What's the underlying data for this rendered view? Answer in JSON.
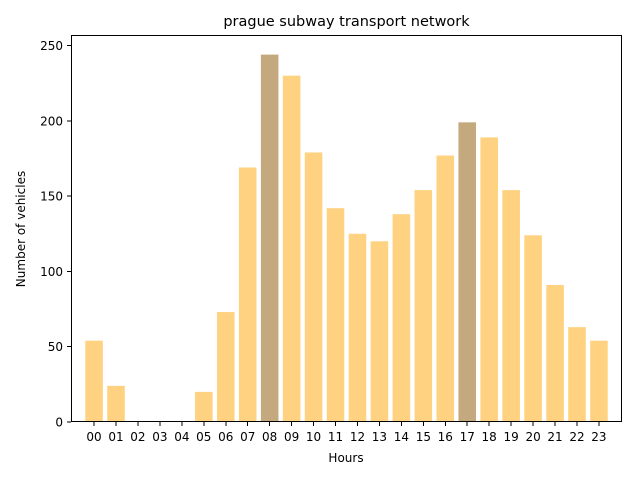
{
  "chart_data": {
    "type": "bar",
    "title": "prague subway transport network",
    "xlabel": "Hours",
    "ylabel": "Number of vehicles",
    "ylim": [
      0,
      257
    ],
    "yticks": [
      0,
      50,
      100,
      150,
      200,
      250
    ],
    "grid": false,
    "categories": [
      "00",
      "01",
      "02",
      "03",
      "04",
      "05",
      "06",
      "07",
      "08",
      "09",
      "10",
      "11",
      "12",
      "13",
      "14",
      "15",
      "16",
      "17",
      "18",
      "19",
      "20",
      "21",
      "22",
      "23"
    ],
    "values": [
      54,
      24,
      0,
      0,
      0,
      20,
      73,
      169,
      244,
      230,
      179,
      142,
      125,
      120,
      138,
      154,
      177,
      199,
      189,
      154,
      124,
      91,
      63,
      54
    ],
    "highlighted_categories": [
      "08",
      "17"
    ]
  },
  "colors": {
    "bar": "#fed280",
    "bar_highlight": "#c4a97f",
    "axis": "#000000"
  }
}
